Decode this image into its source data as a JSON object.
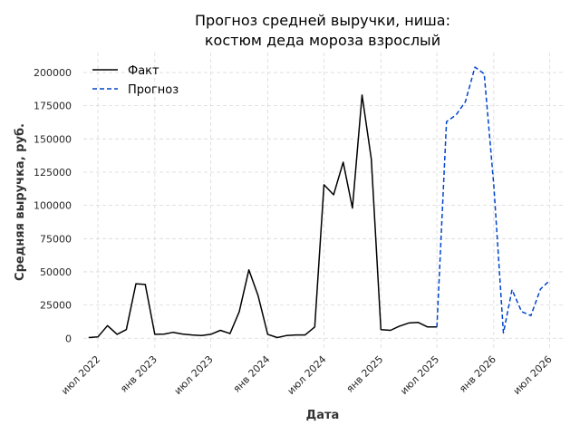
{
  "chart_data": {
    "type": "line",
    "title_line1": "Прогноз средней выручки, ниша:",
    "title_line2": "костюм деда мороза взрослый",
    "xlabel": "Дата",
    "ylabel": "Средняя выручка, руб.",
    "ylim": [
      -8000,
      215000
    ],
    "xlim": [
      "2022-05-15",
      "2026-08-15"
    ],
    "yticks": [
      0,
      25000,
      50000,
      75000,
      100000,
      125000,
      150000,
      175000,
      200000
    ],
    "xticks": [
      {
        "date": "2022-07-01",
        "label": "июл 2022"
      },
      {
        "date": "2023-01-01",
        "label": "янв 2023"
      },
      {
        "date": "2023-07-01",
        "label": "июл 2023"
      },
      {
        "date": "2024-01-01",
        "label": "янв 2024"
      },
      {
        "date": "2024-07-01",
        "label": "июл 2024"
      },
      {
        "date": "2025-01-01",
        "label": "янв 2025"
      },
      {
        "date": "2025-07-01",
        "label": "июл 2025"
      },
      {
        "date": "2026-01-01",
        "label": "янв 2026"
      },
      {
        "date": "2026-07-01",
        "label": "июл 2026"
      }
    ],
    "grid": true,
    "legend_position": "top-left",
    "series": [
      {
        "name": "Факт",
        "color": "#000000",
        "style": "solid",
        "x": [
          "2022-06-01",
          "2022-07-01",
          "2022-08-01",
          "2022-09-01",
          "2022-10-01",
          "2022-11-01",
          "2022-12-01",
          "2023-01-01",
          "2023-02-01",
          "2023-03-01",
          "2023-04-01",
          "2023-05-01",
          "2023-06-01",
          "2023-07-01",
          "2023-08-01",
          "2023-09-01",
          "2023-10-01",
          "2023-11-01",
          "2023-12-01",
          "2024-01-01",
          "2024-02-01",
          "2024-03-01",
          "2024-04-01",
          "2024-05-01",
          "2024-06-01",
          "2024-07-01",
          "2024-08-01",
          "2024-09-01",
          "2024-10-01",
          "2024-11-01",
          "2024-12-01",
          "2025-01-01",
          "2025-02-01",
          "2025-03-01",
          "2025-04-01",
          "2025-05-01",
          "2025-06-01",
          "2025-07-01"
        ],
        "values": [
          500,
          1000,
          9500,
          3000,
          6500,
          41000,
          40500,
          3000,
          3200,
          4500,
          3200,
          2500,
          2000,
          3000,
          6000,
          3500,
          20000,
          51500,
          32000,
          3000,
          500,
          2000,
          2500,
          2500,
          8500,
          115500,
          108000,
          132500,
          98000,
          183000,
          135000,
          6500,
          6000,
          9000,
          11500,
          12000,
          8500,
          8500
        ]
      },
      {
        "name": "Прогноз",
        "color": "#0044cc",
        "style": "dashed",
        "x": [
          "2025-07-01",
          "2025-08-01",
          "2025-09-01",
          "2025-10-01",
          "2025-11-01",
          "2025-12-01",
          "2026-01-01",
          "2026-02-01",
          "2026-03-01",
          "2026-04-01",
          "2026-05-01",
          "2026-06-01",
          "2026-07-01"
        ],
        "values": [
          8500,
          163000,
          168000,
          178000,
          204000,
          199000,
          115000,
          4000,
          36500,
          20000,
          17000,
          37000,
          43500
        ]
      }
    ]
  }
}
